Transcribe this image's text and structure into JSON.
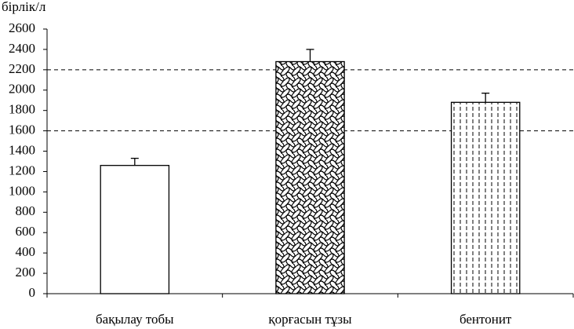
{
  "chart_data": {
    "type": "bar",
    "y_label": "бірлік/л",
    "categories": [
      "бақылау тобы",
      "қорғасын тұзы",
      "бентонит"
    ],
    "values": [
      1260,
      2280,
      1880
    ],
    "errors": [
      70,
      120,
      90
    ],
    "patterns": [
      "plain",
      "waves",
      "dashes"
    ],
    "color": "#000000",
    "ylim": [
      0,
      2600
    ],
    "yticks": [
      0,
      200,
      400,
      600,
      800,
      1000,
      1200,
      1400,
      1600,
      1800,
      2000,
      2200,
      2400,
      2600
    ],
    "reference_lines": [
      1600,
      2200
    ]
  }
}
